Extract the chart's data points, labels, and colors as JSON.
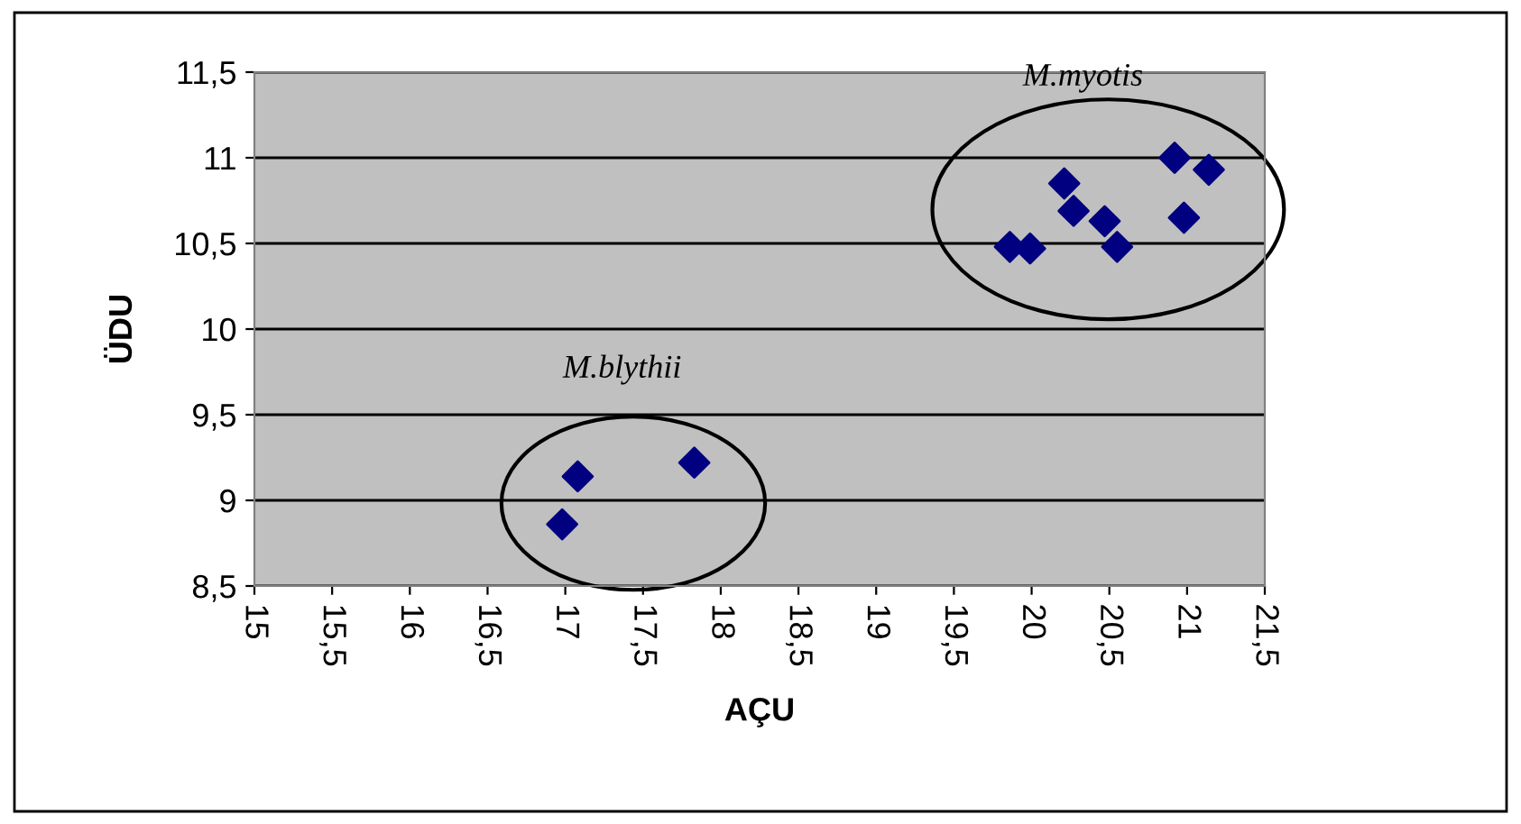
{
  "chart_data": {
    "type": "scatter",
    "xlabel": "AÇU",
    "ylabel": "ÜDU",
    "series": [
      {
        "color": "#000080",
        "x": [
          16.98,
          17.08,
          17.83,
          19.86,
          19.99,
          20.21,
          20.27,
          20.47,
          20.55,
          20.92,
          21.14,
          20.98
        ],
        "values": [
          8.86,
          9.14,
          9.22,
          10.48,
          10.47,
          10.85,
          10.69,
          10.63,
          10.48,
          11.0,
          10.93,
          10.65
        ]
      }
    ],
    "marker": "diamond",
    "grid": "y",
    "legend": false,
    "xlim": [
      15,
      21.5
    ],
    "ylim": [
      8.5,
      11.5
    ],
    "xticks": [
      15,
      {
        "value": 15.5,
        "label": "15,5"
      },
      16,
      {
        "value": 16.5,
        "label": "16,5"
      },
      17,
      {
        "value": 17.5,
        "label": "17,5"
      },
      18,
      {
        "value": 18.5,
        "label": "18,5"
      },
      19,
      {
        "value": 19.5,
        "label": "19,5"
      },
      20,
      {
        "value": 20.5,
        "label": "20,5"
      },
      21,
      {
        "value": 21.5,
        "label": "21,5"
      }
    ],
    "yticks": [
      {
        "value": 8.5,
        "label": "8,5"
      },
      9,
      {
        "value": 9.5,
        "label": "9,5"
      },
      10,
      {
        "value": 10.5,
        "label": "10,5"
      },
      11,
      {
        "value": 11.5,
        "label": "11,5"
      }
    ],
    "annotations": [
      "M.blythii",
      "M.myotis"
    ]
  }
}
